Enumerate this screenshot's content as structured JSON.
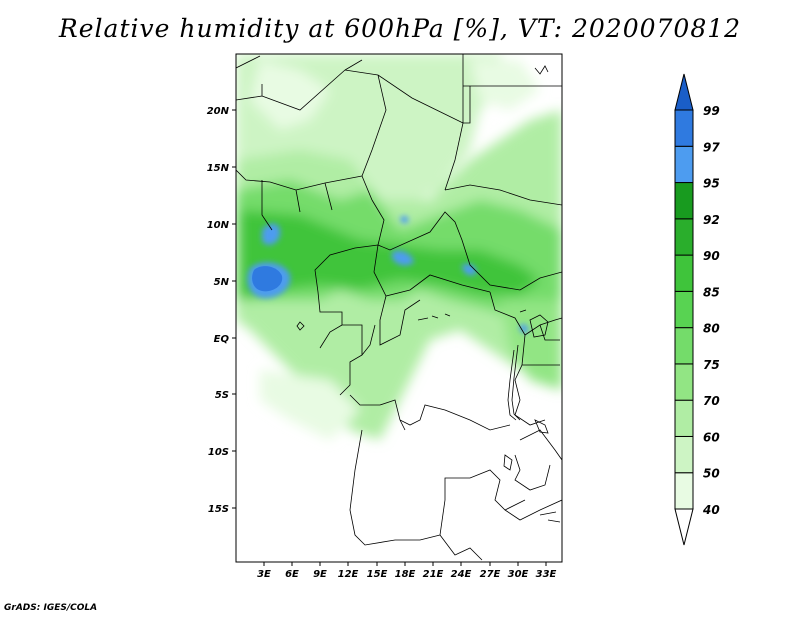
{
  "title": "Relative humidity at 600hPa [%], VT: 2020070812",
  "credit": "GrADS: IGES/COLA",
  "map": {
    "lat_labels": [
      "20N",
      "15N",
      "10N",
      "5N",
      "EQ",
      "5S",
      "10S",
      "15S"
    ],
    "lon_labels": [
      "3E",
      "6E",
      "9E",
      "12E",
      "15E",
      "18E",
      "21E",
      "24E",
      "27E",
      "30E",
      "33E"
    ]
  },
  "colorbar": {
    "levels": [
      "40",
      "50",
      "60",
      "70",
      "75",
      "80",
      "85",
      "90",
      "92",
      "95",
      "97",
      "99"
    ],
    "colors": [
      "#e8fbe3",
      "#cdf4c4",
      "#b0eda4",
      "#92e584",
      "#74dc6a",
      "#58d352",
      "#3fc43b",
      "#2aae2c",
      "#189b1f",
      "#4d9cf0",
      "#2f7ae0",
      "#1a5ec8"
    ]
  }
}
